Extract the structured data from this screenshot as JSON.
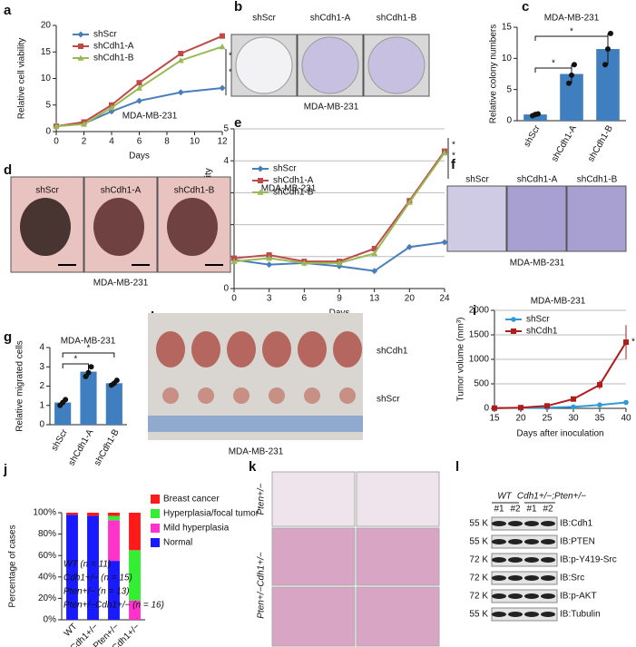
{
  "chart_data": [
    {
      "panel": "a",
      "type": "line",
      "text": "MDA-MB-231",
      "xlabel": "Days",
      "ylabel": "Relative cell viability",
      "x": [
        0,
        2,
        4,
        6,
        9,
        12
      ],
      "xlim": [
        0,
        12
      ],
      "xticks": [
        0,
        2,
        4,
        6,
        8,
        10,
        12
      ],
      "ylim": [
        0,
        20
      ],
      "yticks": [
        0,
        5,
        10,
        15,
        20
      ],
      "legend": "upper left",
      "series": [
        {
          "name": "shScr",
          "color": "#4a7ebb",
          "marker": "diamond",
          "values": [
            1,
            1.5,
            3.8,
            5.8,
            7.4,
            8.2
          ]
        },
        {
          "name": "shCdh1-A",
          "color": "#be4b48",
          "marker": "square",
          "values": [
            1,
            1.8,
            5,
            9.2,
            14.7,
            18
          ]
        },
        {
          "name": "shCdh1-B",
          "color": "#98b954",
          "marker": "triangle",
          "values": [
            1,
            1.4,
            4.5,
            8.2,
            13.4,
            16
          ]
        }
      ],
      "annotations": [
        "*",
        "*"
      ]
    },
    {
      "panel": "c",
      "type": "bar",
      "title": "MDA-MB-231",
      "ylabel": "Relative colony numbers",
      "categories": [
        "shScr",
        "shCdh1-A",
        "shCdh1-B"
      ],
      "values": [
        1,
        7.5,
        11.5
      ],
      "errors": [
        0.2,
        1.5,
        2.5
      ],
      "points": [
        [
          0.8,
          1,
          1.1
        ],
        [
          6,
          7.3,
          9
        ],
        [
          9,
          11.5,
          14
        ]
      ],
      "color": "#3f7fc0",
      "ylim": [
        0,
        15
      ],
      "yticks": [
        0,
        5,
        10,
        15
      ],
      "annotations": [
        "*",
        "*"
      ]
    },
    {
      "panel": "e",
      "type": "line",
      "text": "MDA-MB-231",
      "xlabel": "Days",
      "ylabel": "Relative cell viability",
      "categories": [
        "0",
        "3",
        "6",
        "9",
        "13",
        "20",
        "24"
      ],
      "ylim": [
        0,
        5
      ],
      "yticks": [
        0,
        1,
        2,
        3,
        4,
        5
      ],
      "grid": true,
      "legend": "upper left",
      "series": [
        {
          "name": "shScr",
          "color": "#4a7ebb",
          "marker": "diamond",
          "values": [
            0.9,
            0.75,
            0.8,
            0.7,
            0.55,
            1.3,
            1.45
          ]
        },
        {
          "name": "shCdh1-A",
          "color": "#be4b48",
          "marker": "square",
          "values": [
            0.95,
            1.05,
            0.85,
            0.85,
            1.25,
            2.75,
            4.3
          ]
        },
        {
          "name": "shCdh1-B",
          "color": "#98b954",
          "marker": "triangle",
          "values": [
            0.85,
            0.95,
            0.8,
            0.8,
            1.1,
            2.7,
            4.25
          ]
        }
      ],
      "annotations": [
        "*",
        "*"
      ]
    },
    {
      "panel": "g",
      "type": "bar",
      "title": "MDA-MB-231",
      "ylabel": "Relative migrated cells",
      "categories": [
        "shScr",
        "shCdh1-A",
        "shCdh1-B"
      ],
      "values": [
        1.15,
        2.75,
        2.15
      ],
      "errors": [
        0.15,
        0.25,
        0.15
      ],
      "points": [
        [
          1,
          1.15,
          1.3
        ],
        [
          2.5,
          2.7,
          3
        ],
        [
          2.05,
          2.15,
          2.3
        ]
      ],
      "color": "#3f7fc0",
      "ylim": [
        0,
        4
      ],
      "yticks": [
        0,
        1,
        2,
        3,
        4
      ],
      "annotations": [
        "*",
        "*"
      ]
    },
    {
      "panel": "i",
      "type": "line",
      "title": "MDA-MB-231",
      "xlabel": "Days after inoculation",
      "ylabel": "Tumor volume (mm³)",
      "x": [
        15,
        20,
        25,
        30,
        35,
        40
      ],
      "xlim": [
        15,
        40
      ],
      "xticks": [
        15,
        20,
        25,
        30,
        35,
        40
      ],
      "ylim": [
        0,
        2000
      ],
      "yticks": [
        0,
        500,
        1000,
        1500,
        2000
      ],
      "grid": true,
      "legend": "upper left",
      "series": [
        {
          "name": "shScr",
          "color": "#2e9bd6",
          "marker": "circle",
          "values": [
            5,
            10,
            15,
            30,
            70,
            120
          ]
        },
        {
          "name": "shCdh1",
          "color": "#b01c1c",
          "marker": "square",
          "values": [
            5,
            15,
            50,
            190,
            480,
            1350
          ],
          "errors": [
            0,
            0,
            10,
            30,
            90,
            350
          ]
        }
      ],
      "annotations": [
        "*"
      ]
    },
    {
      "panel": "j",
      "type": "stacked_bar",
      "ylabel": "Percentage of cases",
      "categories": [
        "WT",
        "Cdh1+/−",
        "Pten+/−",
        "Pten+/−Cdh1+/−"
      ],
      "ylim": [
        0,
        100
      ],
      "yticks": [
        {
          "value": 0,
          "label": "0%"
        },
        {
          "value": 20,
          "label": "20%"
        },
        {
          "value": 40,
          "label": "40%"
        },
        {
          "value": 60,
          "label": "60%"
        },
        {
          "value": 80,
          "label": "80%"
        },
        {
          "value": 100,
          "label": "100%"
        }
      ],
      "legend": "right",
      "series": [
        {
          "name": "Normal",
          "color": "#1a1aff",
          "values": [
            98,
            97,
            55,
            0
          ]
        },
        {
          "name": "Mild hyperplasia",
          "color": "#ff33cc",
          "values": [
            0,
            0,
            38,
            18
          ]
        },
        {
          "name": "Hyperplasia/focal tumor",
          "color": "#33ee33",
          "values": [
            0,
            0,
            4,
            47
          ]
        },
        {
          "name": "Breast cancer",
          "color": "#ff1a1a",
          "values": [
            2,
            3,
            3,
            35
          ]
        }
      ],
      "annotations": [
        "WT (n = 11)",
        "Cdh1+/− (n = 15)",
        "Pten+/− (n = 13)",
        "Pten+/−Cdh1+/− (n = 16)"
      ]
    }
  ],
  "image_panels": [
    {
      "panel": "b",
      "labels": [
        "shScr",
        "shCdh1-A",
        "shCdh1-B"
      ],
      "caption": "MDA-MB-231"
    },
    {
      "panel": "d",
      "labels": [
        "shScr",
        "shCdh1-A",
        "shCdh1-B"
      ],
      "caption": "MDA-MB-231"
    },
    {
      "panel": "f",
      "labels": [
        "shScr",
        "shCdh1-A",
        "shCdh1-B"
      ],
      "caption": "MDA-MB-231"
    },
    {
      "panel": "h",
      "labels": [
        "shCdh1",
        "shScr"
      ],
      "caption": "MDA-MB-231"
    },
    {
      "panel": "k",
      "labels": [
        "Pten+/−",
        "Pten+/−Cdh1+/−"
      ]
    },
    {
      "panel": "l",
      "groups": [
        "WT",
        "Cdh1+/−;Pten+/−"
      ],
      "lanes": [
        "#1",
        "#2",
        "#1",
        "#2"
      ],
      "markers": [
        "55 K",
        "55 K",
        "72 K",
        "72 K",
        "72 K",
        "55 K"
      ],
      "blots": [
        "IB:Cdh1",
        "IB:PTEN",
        "IB:p-Y419-Src",
        "IB:Src",
        "IB:p-AKT",
        "IB:Tubulin"
      ]
    }
  ]
}
